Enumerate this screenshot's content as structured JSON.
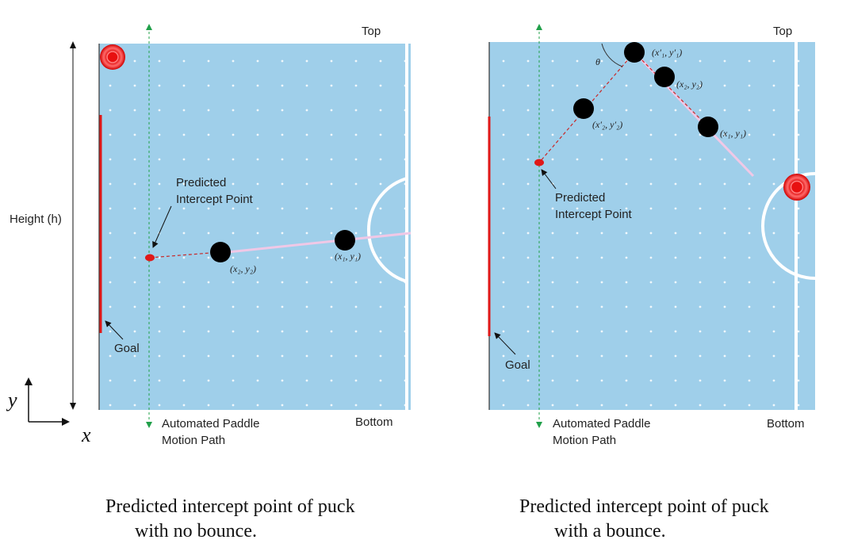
{
  "left_panel": {
    "top_label": "Top",
    "bottom_label": "Bottom",
    "height_label": "Height (h)",
    "predicted_line1": "Predicted",
    "predicted_line2": "Intercept Point",
    "goal_label": "Goal",
    "paddle_line1": "Automated Paddle",
    "paddle_line2": "Motion Path",
    "coord_p1": "(x₁, y₁)",
    "coord_p2": "(x₂, y₂)",
    "caption_line1": "Predicted intercept point of puck",
    "caption_line2": "with no bounce."
  },
  "right_panel": {
    "top_label": "Top",
    "bottom_label": "Bottom",
    "predicted_line1": "Predicted",
    "predicted_line2": "Intercept Point",
    "goal_label": "Goal",
    "paddle_line1": "Automated Paddle",
    "paddle_line2": "Motion Path",
    "coord_p1": "(x₁, y₁)",
    "coord_p2": "(x₂, y₂)",
    "coord_p1_prime": "(x′₁, y′₁)",
    "coord_p2_prime": "(x′₂, y′₂)",
    "theta": "θ",
    "caption_line1": "Predicted intercept point of puck",
    "caption_line2": "with a bounce."
  },
  "axes": {
    "y": "y",
    "x": "x"
  },
  "colors": {
    "table": "#9fcfea",
    "goal": "#e01818",
    "guide": "#21a04a",
    "puck": "#000000",
    "trail": "#f0c8e6",
    "predicted_path": "#c82828"
  }
}
